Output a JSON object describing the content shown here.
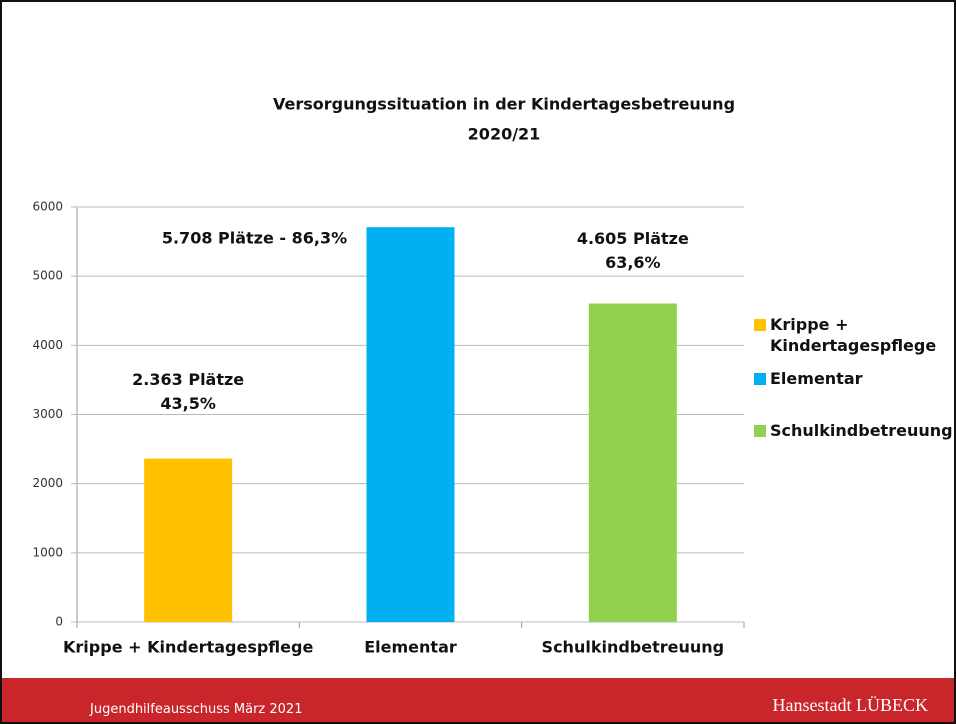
{
  "chart_data": {
    "type": "bar",
    "title": [
      "Versorgungssituation in der Kindertagesbetreuung",
      "2020/21"
    ],
    "categories": [
      "Krippe + Kindertagespflege",
      "Elementar",
      "Schulkindbetreuung"
    ],
    "values": [
      2363,
      5708,
      4605
    ],
    "value_labels": [
      [
        "2.363 Plätze",
        "43,5%"
      ],
      [
        "5.708 Plätze - 86,3%"
      ],
      [
        "4.605 Plätze",
        "63,6%"
      ]
    ],
    "colors": [
      "#ffc000",
      "#00b0f0",
      "#92d050"
    ],
    "ylim": [
      0,
      6000
    ],
    "yticks": [
      0,
      1000,
      2000,
      3000,
      4000,
      5000,
      6000
    ],
    "grid": true,
    "legend": "right"
  },
  "footer": {
    "left": "Jugendhilfeausschuss März 2021",
    "right": "Hansestadt LÜBECK"
  }
}
